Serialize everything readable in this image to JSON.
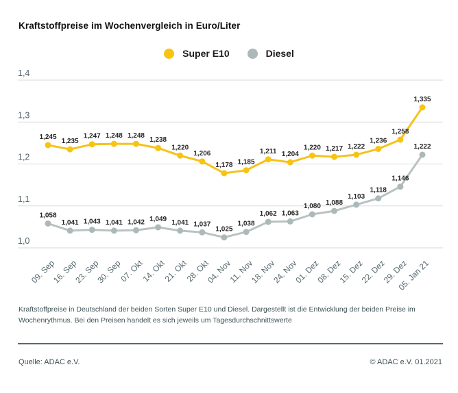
{
  "chart_data": {
    "type": "line",
    "title": "Kraftstoffpreise im Wochenvergleich in Euro/Liter",
    "categories": [
      "09. Sep",
      "16. Sep",
      "23. Sep",
      "30. Sep",
      "07. Okt",
      "14. Okt",
      "21. Okt",
      "28. Okt",
      "04. Nov",
      "11. Nov",
      "18. Nov",
      "24. Nov",
      "01. Dez",
      "08. Dez",
      "15. Dez",
      "22. Dez",
      "29. Dez",
      "05. Jan 21"
    ],
    "series": [
      {
        "name": "Super E10",
        "color": "#f5c21a",
        "marker_color": "#f7c413",
        "values": [
          1.245,
          1.235,
          1.247,
          1.248,
          1.248,
          1.238,
          1.22,
          1.206,
          1.178,
          1.185,
          1.211,
          1.204,
          1.22,
          1.217,
          1.222,
          1.236,
          1.258,
          1.335
        ]
      },
      {
        "name": "Diesel",
        "color": "#b8c2c2",
        "marker_color": "#adb9b9",
        "values": [
          1.058,
          1.041,
          1.043,
          1.041,
          1.042,
          1.049,
          1.041,
          1.037,
          1.025,
          1.038,
          1.062,
          1.063,
          1.08,
          1.088,
          1.103,
          1.118,
          1.146,
          1.222
        ]
      }
    ],
    "ylim": [
      1.0,
      1.4
    ],
    "yticks": [
      1.0,
      1.1,
      1.2,
      1.3,
      1.4
    ],
    "decimal_separator": ",",
    "value_labels": true,
    "grid": "horizontal",
    "legend_position": "top-center",
    "colors": {
      "grid_line": "#dadada",
      "axis_text": "#54666c",
      "value_label_text": "#262626"
    }
  },
  "footnote": {
    "text": "Kraftstoffpreise in Deutschland der beiden Sorten Super E10 und Diesel. Dargestellt ist die Entwicklung der beiden Preise im Wochenrythmus. Bei den Preisen handelt es sich jeweils um Tagesdurchschnittswerte"
  },
  "footer": {
    "source": "Quelle: ADAC e.V.",
    "copyright": "© ADAC e.V. 01.2021"
  }
}
